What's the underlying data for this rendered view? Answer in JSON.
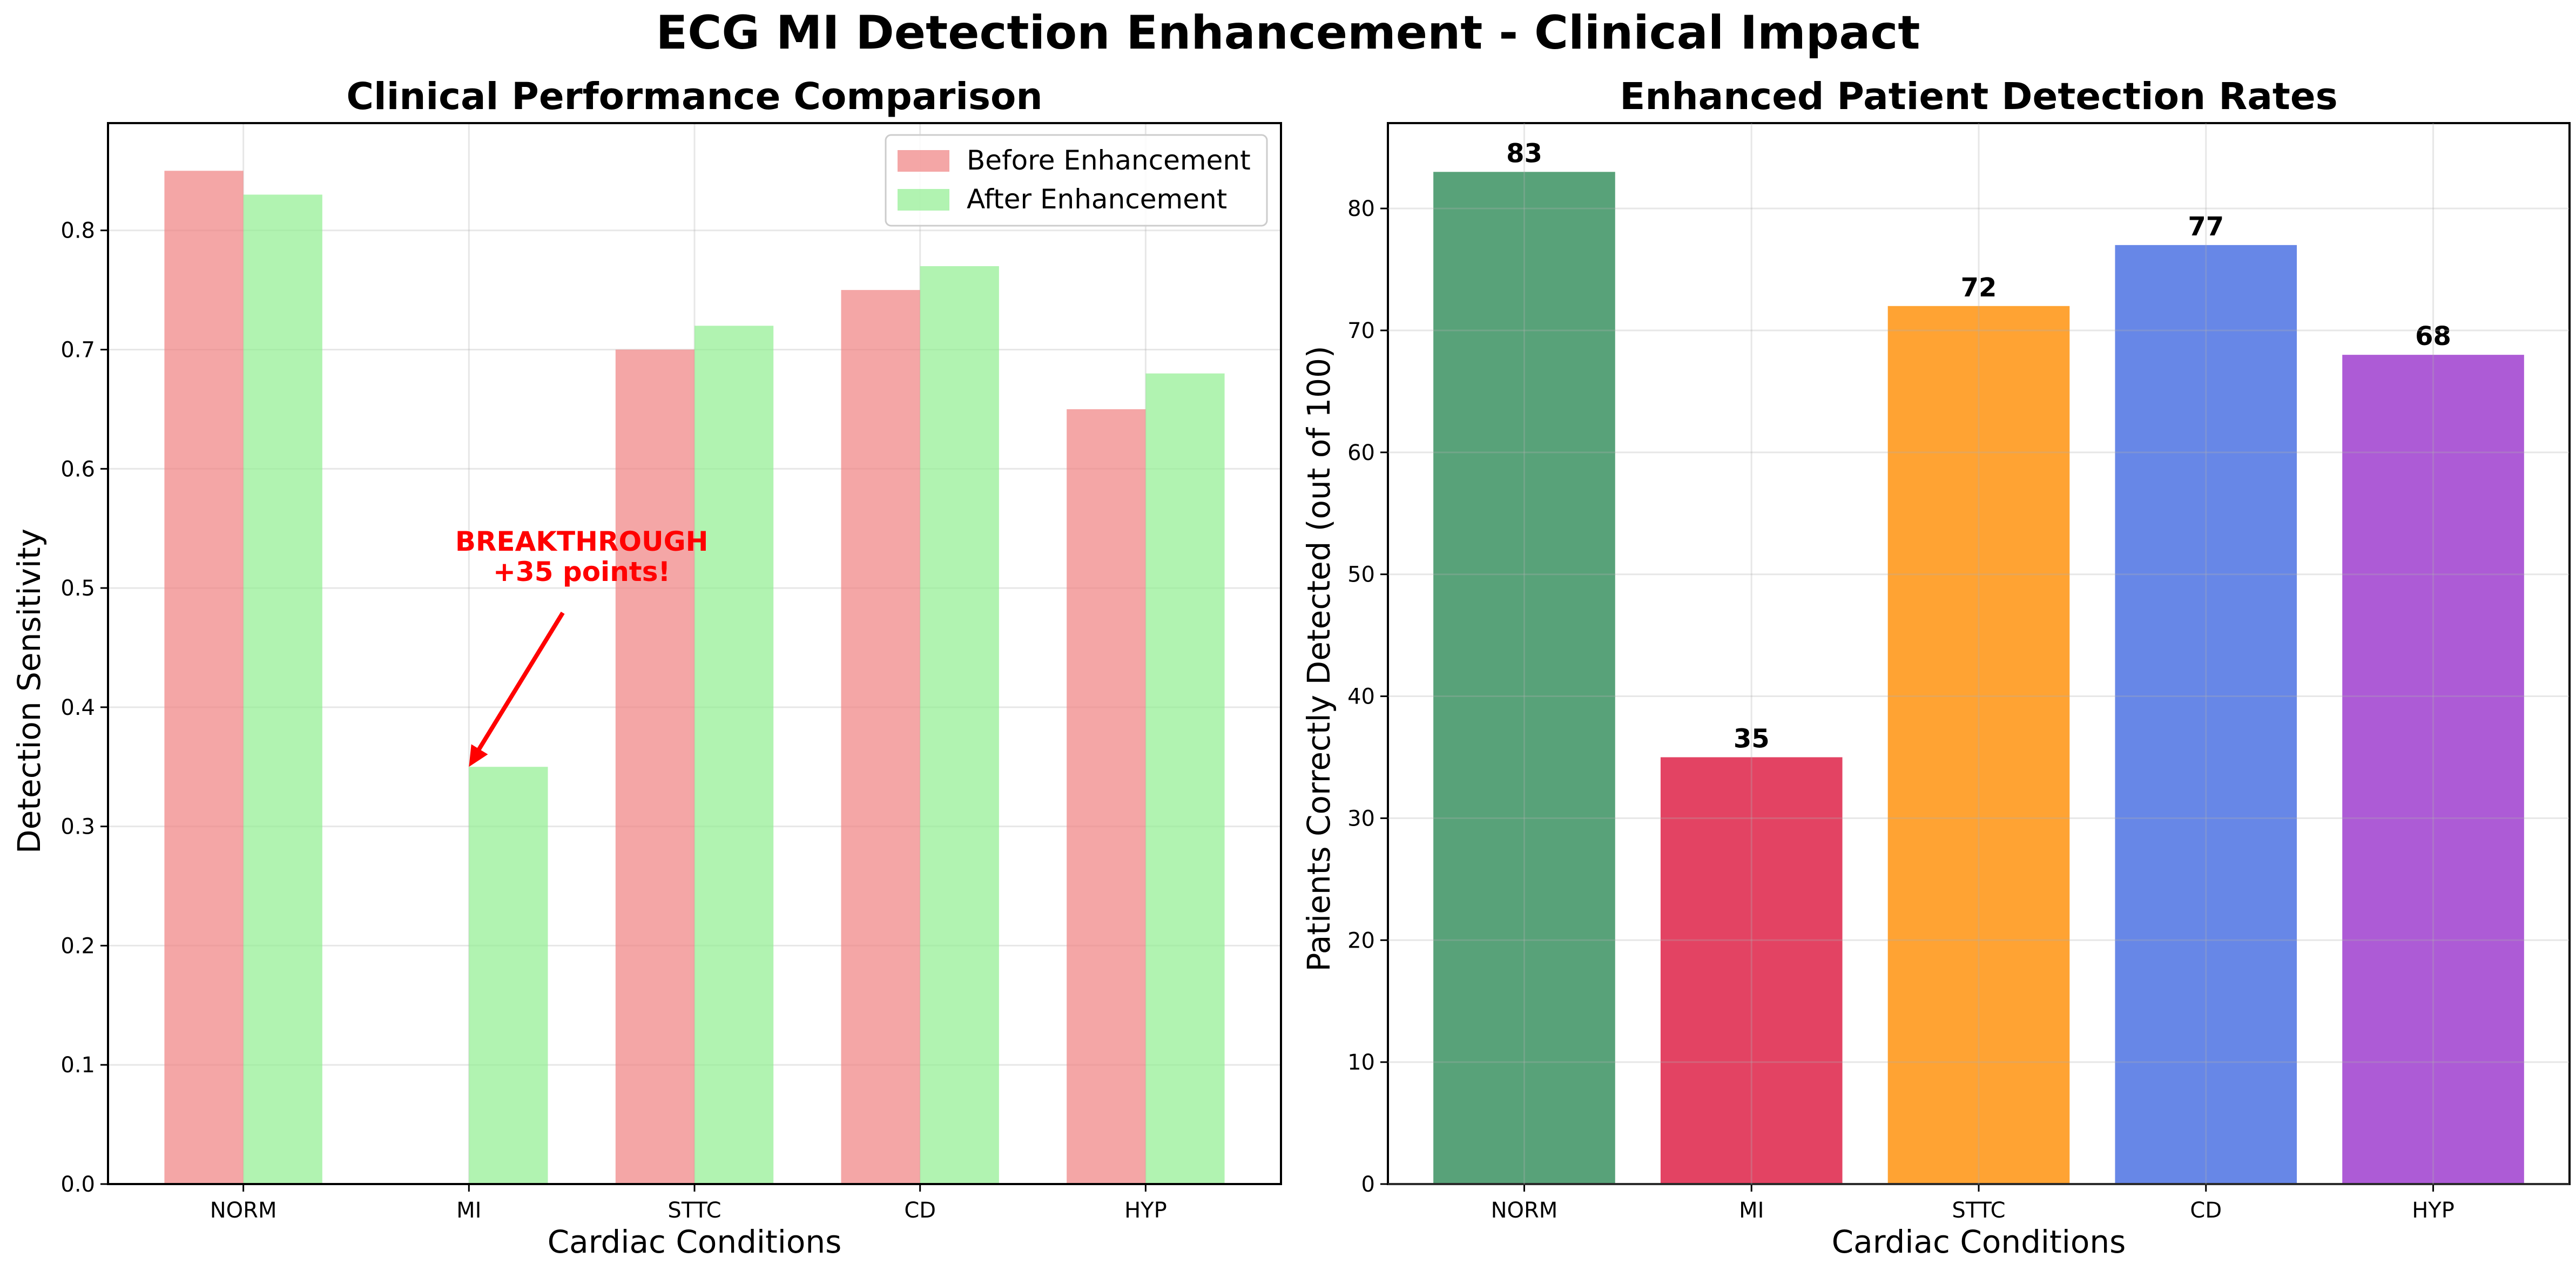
{
  "figure": {
    "title": "ECG MI Detection Enhancement - Clinical Impact"
  },
  "chart_data": [
    {
      "type": "bar",
      "title": "Clinical Performance Comparison",
      "xlabel": "Cardiac Conditions",
      "ylabel": "Detection Sensitivity",
      "categories": [
        "NORM",
        "MI",
        "STTC",
        "CD",
        "HYP"
      ],
      "series": [
        {
          "name": "Before Enhancement",
          "values": [
            0.85,
            0.0,
            0.7,
            0.75,
            0.65
          ],
          "color": "#f08080"
        },
        {
          "name": "After Enhancement",
          "values": [
            0.83,
            0.35,
            0.72,
            0.77,
            0.68
          ],
          "color": "#90ee90"
        }
      ],
      "ylim": [
        0,
        0.89
      ],
      "yticks": [
        0.0,
        0.1,
        0.2,
        0.3,
        0.4,
        0.5,
        0.6,
        0.7,
        0.8
      ],
      "ytick_labels": [
        "0.0",
        "0.1",
        "0.2",
        "0.3",
        "0.4",
        "0.5",
        "0.6",
        "0.7",
        "0.8"
      ],
      "grid": true,
      "legend": "top-right",
      "annotation": {
        "lines": [
          "BREAKTHROUGH",
          "+35 points!"
        ],
        "color": "#ff0000",
        "text_at": {
          "category": "MI",
          "y": 0.52
        },
        "arrow_to": {
          "category": "MI",
          "y": 0.35
        }
      }
    },
    {
      "type": "bar",
      "title": "Enhanced Patient Detection Rates",
      "xlabel": "Cardiac Conditions",
      "ylabel": "Patients Correctly Detected (out of 100)",
      "categories": [
        "NORM",
        "MI",
        "STTC",
        "CD",
        "HYP"
      ],
      "values": [
        83,
        35,
        72,
        77,
        68
      ],
      "value_labels": [
        "83",
        "35",
        "72",
        "77",
        "68"
      ],
      "colors": [
        "#2e8b57",
        "#dc143c",
        "#ff8c00",
        "#4169e1",
        "#9932cc"
      ],
      "ylim": [
        0,
        87
      ],
      "yticks": [
        0,
        10,
        20,
        30,
        40,
        50,
        60,
        70,
        80
      ],
      "ytick_labels": [
        "0",
        "10",
        "20",
        "30",
        "40",
        "50",
        "60",
        "70",
        "80"
      ],
      "grid": true
    }
  ]
}
